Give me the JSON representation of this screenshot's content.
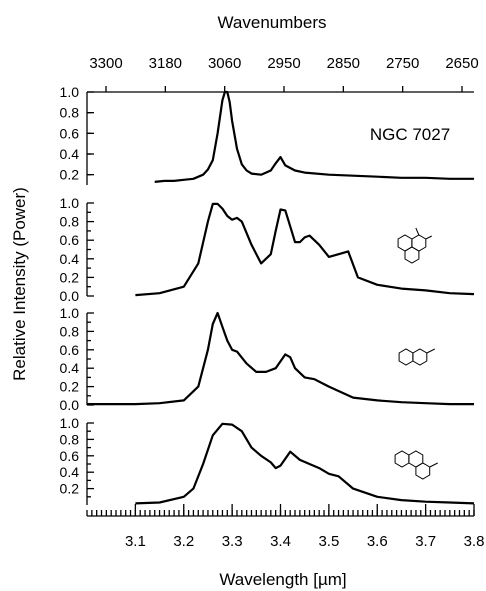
{
  "chart_data": {
    "type": "line",
    "top_axis": {
      "label": "Wavenumbers",
      "ticks": [
        3300,
        3180,
        3060,
        2950,
        2850,
        2750,
        2650
      ]
    },
    "bottom_axis": {
      "label": "Wavelength [µm]",
      "xlim": [
        3.0,
        3.8
      ],
      "ticks": [
        "3.1",
        "3.2",
        "3.3",
        "3.4",
        "3.5",
        "3.6",
        "3.7",
        "3.8"
      ]
    },
    "ylabel": "Relative Intensity (Power)",
    "panels": [
      {
        "label": "NGC 7027",
        "structure": "none",
        "ylim": [
          0.1,
          1.0
        ],
        "yticks": [
          "1.0",
          "0.8",
          "0.6",
          "0.4",
          "0.2"
        ],
        "x": [
          3.14,
          3.16,
          3.18,
          3.2,
          3.22,
          3.24,
          3.25,
          3.26,
          3.27,
          3.28,
          3.285,
          3.29,
          3.295,
          3.3,
          3.31,
          3.32,
          3.33,
          3.34,
          3.36,
          3.38,
          3.39,
          3.4,
          3.41,
          3.43,
          3.45,
          3.5,
          3.55,
          3.6,
          3.65,
          3.7,
          3.75,
          3.8
        ],
        "y": [
          0.13,
          0.14,
          0.14,
          0.15,
          0.16,
          0.2,
          0.25,
          0.34,
          0.6,
          0.92,
          1.0,
          1.0,
          0.9,
          0.72,
          0.45,
          0.3,
          0.24,
          0.21,
          0.2,
          0.24,
          0.31,
          0.37,
          0.29,
          0.24,
          0.22,
          0.2,
          0.19,
          0.18,
          0.17,
          0.17,
          0.16,
          0.16
        ]
      },
      {
        "label": "",
        "structure": "dihydrophenanthrene",
        "ylim": [
          0.0,
          1.0
        ],
        "yticks": [
          "1.0",
          "0.8",
          "0.6",
          "0.4",
          "0.2",
          "0.0"
        ],
        "x": [
          3.1,
          3.15,
          3.2,
          3.23,
          3.25,
          3.26,
          3.27,
          3.28,
          3.29,
          3.3,
          3.31,
          3.32,
          3.34,
          3.36,
          3.38,
          3.39,
          3.4,
          3.41,
          3.42,
          3.43,
          3.44,
          3.45,
          3.46,
          3.48,
          3.5,
          3.52,
          3.54,
          3.56,
          3.6,
          3.65,
          3.7,
          3.75,
          3.8
        ],
        "y": [
          0.01,
          0.03,
          0.1,
          0.35,
          0.8,
          0.99,
          0.99,
          0.94,
          0.86,
          0.82,
          0.84,
          0.8,
          0.55,
          0.35,
          0.45,
          0.7,
          0.93,
          0.92,
          0.75,
          0.58,
          0.58,
          0.63,
          0.65,
          0.55,
          0.42,
          0.45,
          0.48,
          0.2,
          0.12,
          0.08,
          0.06,
          0.03,
          0.02
        ]
      },
      {
        "label": "",
        "structure": "methylnaphthalene",
        "ylim": [
          0.0,
          1.0
        ],
        "yticks": [
          "1.0",
          "0.8",
          "0.6",
          "0.4",
          "0.2",
          "0.0"
        ],
        "x": [
          3.0,
          3.1,
          3.15,
          3.2,
          3.23,
          3.25,
          3.26,
          3.27,
          3.28,
          3.29,
          3.3,
          3.31,
          3.33,
          3.35,
          3.37,
          3.39,
          3.41,
          3.42,
          3.43,
          3.45,
          3.47,
          3.5,
          3.55,
          3.6,
          3.65,
          3.7,
          3.75,
          3.8
        ],
        "y": [
          0.01,
          0.01,
          0.02,
          0.05,
          0.2,
          0.6,
          0.88,
          1.0,
          0.85,
          0.7,
          0.6,
          0.58,
          0.45,
          0.36,
          0.36,
          0.4,
          0.55,
          0.52,
          0.4,
          0.3,
          0.28,
          0.2,
          0.08,
          0.05,
          0.03,
          0.02,
          0.01,
          0.01
        ]
      },
      {
        "label": "",
        "structure": "methylphenanthrene",
        "ylim": [
          0.0,
          1.0
        ],
        "yticks": [
          "1.0",
          "0.8",
          "0.6",
          "0.4",
          "0.2"
        ],
        "x": [
          3.1,
          3.15,
          3.2,
          3.22,
          3.24,
          3.26,
          3.28,
          3.3,
          3.32,
          3.34,
          3.36,
          3.38,
          3.39,
          3.4,
          3.42,
          3.44,
          3.46,
          3.48,
          3.5,
          3.52,
          3.55,
          3.6,
          3.65,
          3.7,
          3.75,
          3.8
        ],
        "y": [
          0.02,
          0.03,
          0.1,
          0.2,
          0.5,
          0.85,
          0.99,
          0.98,
          0.9,
          0.7,
          0.6,
          0.52,
          0.45,
          0.48,
          0.65,
          0.55,
          0.5,
          0.45,
          0.38,
          0.35,
          0.2,
          0.1,
          0.06,
          0.04,
          0.03,
          0.02
        ]
      }
    ]
  }
}
